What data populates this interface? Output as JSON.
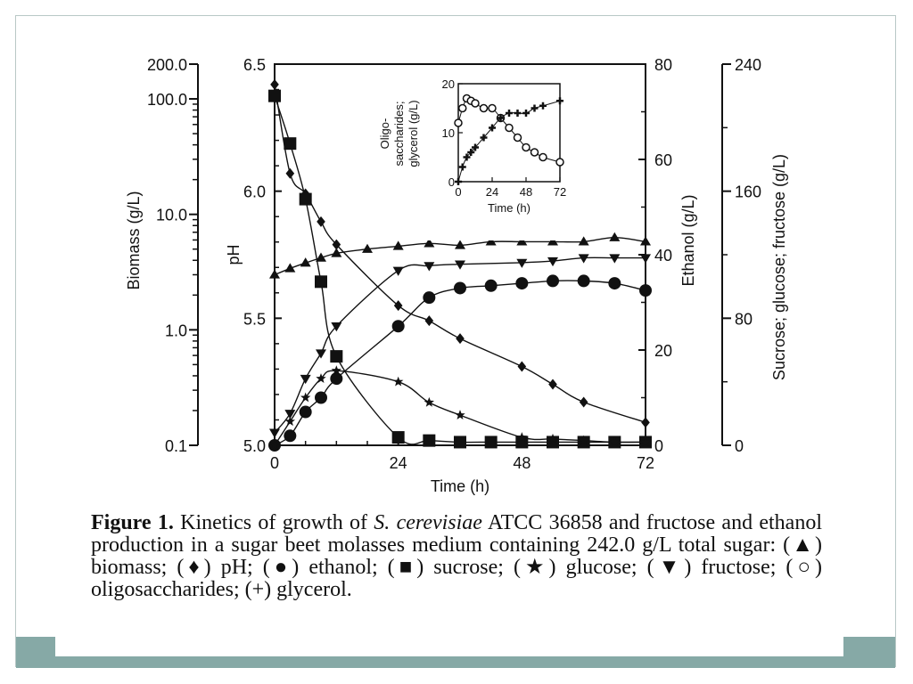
{
  "caption": {
    "lead": "Figure 1.",
    "t1": "  Kinetics of growth of ",
    "species": "S. cerevisiae",
    "t2": " ATCC 36858 and fructose and ethanol production in a sugar beet molasses medium containing 242.0 g/L total sugar:  (▲) biomass; (♦) pH; (●) ethanol; (■) sucrose; (★) glucose; (▼) fructose; (○) oligosaccharides; (+) glycerol."
  },
  "colors": {
    "ink": "#111111",
    "band": "#86a9a6",
    "frame": "#b9c8c6"
  },
  "chart_data": [
    {
      "type": "line",
      "x_label": "Time (h)",
      "x_ticks": [
        "0",
        "24",
        "48",
        "72"
      ],
      "xlim": [
        0,
        72
      ],
      "axes": {
        "biomass": {
          "label": "Biomass (g/L)",
          "scale": "log",
          "range": [
            0.1,
            200
          ],
          "ticks": [
            {
              "v": 200,
              "t": "200.0"
            },
            {
              "v": 100,
              "t": "100.0"
            },
            {
              "v": 10,
              "t": "10.0"
            },
            {
              "v": 1,
              "t": "1.0"
            },
            {
              "v": 0.1,
              "t": "0.1"
            }
          ]
        },
        "ph": {
          "label": "pH",
          "range": [
            5.0,
            6.5
          ],
          "ticks": [
            "6.5",
            "6.0",
            "5.5",
            "5.0"
          ]
        },
        "ethanol": {
          "label": "Ethanol (g/L)",
          "range": [
            0,
            80
          ],
          "ticks": [
            "80",
            "60",
            "40",
            "20",
            "0"
          ]
        },
        "sugar": {
          "label": "Sucrose; glucose; fructose (g/L)",
          "range": [
            0,
            240
          ],
          "ticks": [
            "240",
            "160",
            "80",
            "0"
          ]
        }
      },
      "series": [
        {
          "legend": "biomass",
          "axis": "biomass",
          "marker": "triangle-up",
          "x": [
            0,
            3,
            6,
            9,
            12,
            18,
            24,
            30,
            36,
            42,
            48,
            54,
            60,
            66,
            72
          ],
          "y": [
            3.0,
            3.4,
            3.8,
            4.2,
            4.6,
            5.0,
            5.3,
            5.6,
            5.4,
            5.8,
            5.8,
            5.8,
            5.8,
            6.3,
            5.8
          ]
        },
        {
          "legend": "pH",
          "axis": "ph",
          "marker": "diamond",
          "x": [
            0,
            3,
            6,
            9,
            12,
            24,
            30,
            36,
            48,
            54,
            60,
            72
          ],
          "y": [
            6.42,
            6.07,
            5.99,
            5.88,
            5.79,
            5.55,
            5.49,
            5.42,
            5.31,
            5.24,
            5.17,
            5.09
          ]
        },
        {
          "legend": "ethanol",
          "axis": "ethanol",
          "marker": "circle",
          "x": [
            0,
            3,
            6,
            9,
            12,
            24,
            30,
            36,
            42,
            48,
            54,
            60,
            66,
            72
          ],
          "y": [
            0,
            2,
            7,
            10,
            14,
            25,
            31,
            33,
            33.5,
            34,
            34.5,
            34.5,
            34,
            32.5
          ]
        },
        {
          "legend": "sucrose",
          "axis": "sugar",
          "marker": "square",
          "x": [
            0,
            3,
            6,
            9,
            12,
            24,
            30,
            36,
            42,
            48,
            54,
            60,
            66,
            72
          ],
          "y": [
            220,
            190,
            155,
            103,
            56,
            5,
            3,
            2,
            2,
            2,
            2,
            2,
            2,
            2
          ]
        },
        {
          "legend": "glucose",
          "axis": "sugar",
          "marker": "star",
          "x": [
            0,
            3,
            6,
            9,
            12,
            24,
            30,
            36,
            48,
            54,
            60,
            66,
            72
          ],
          "y": [
            0,
            15,
            30,
            42,
            47,
            40,
            27,
            19,
            5,
            4,
            3,
            2,
            2
          ]
        },
        {
          "legend": "fructose",
          "axis": "sugar",
          "marker": "triangle-down",
          "x": [
            0,
            3,
            6,
            9,
            12,
            24,
            30,
            36,
            48,
            54,
            60,
            66,
            72
          ],
          "y": [
            8,
            20,
            42,
            58,
            75,
            110,
            113,
            114,
            115,
            116,
            118,
            118,
            118
          ]
        }
      ]
    },
    {
      "type": "line",
      "inset": true,
      "x_label": "Time (h)",
      "y_label": [
        "Oligo-",
        "saccharides;",
        "glycerol (g/L)"
      ],
      "xlim": [
        0,
        72
      ],
      "x_ticks": [
        "0",
        "24",
        "48",
        "72"
      ],
      "ylim": [
        0,
        20
      ],
      "y_ticks": [
        "20",
        "10",
        "0"
      ],
      "series": [
        {
          "legend": "oligosaccharides",
          "marker": "circle-open",
          "x": [
            0,
            3,
            6,
            9,
            12,
            18,
            24,
            30,
            36,
            42,
            48,
            54,
            60,
            72
          ],
          "y": [
            12,
            15,
            17,
            16.5,
            16,
            15,
            15,
            13,
            11,
            9,
            7,
            6,
            5,
            4
          ]
        },
        {
          "legend": "glycerol",
          "marker": "plus",
          "x": [
            0,
            3,
            6,
            9,
            12,
            18,
            24,
            30,
            36,
            42,
            48,
            54,
            60,
            72
          ],
          "y": [
            0,
            3,
            5,
            6,
            7,
            9,
            11,
            13,
            14,
            14,
            14,
            15,
            15.5,
            16.5
          ]
        }
      ]
    }
  ]
}
